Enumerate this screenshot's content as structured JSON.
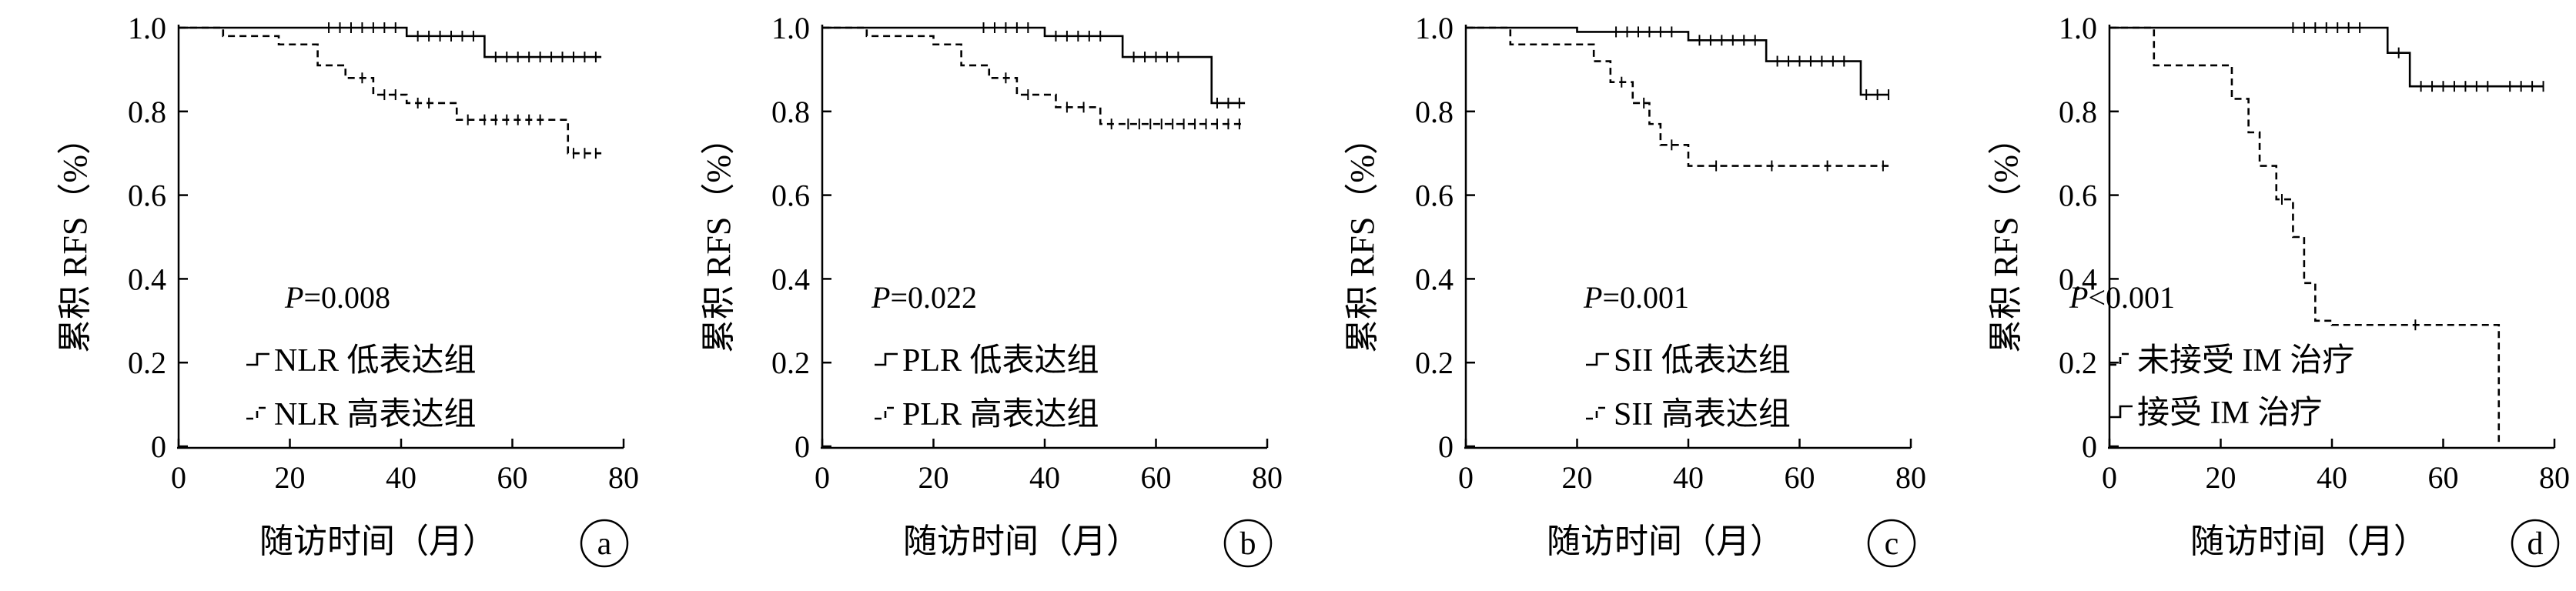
{
  "chart_data": [
    {
      "type": "line",
      "panel_label": "a",
      "xlabel": "随访时间（月）",
      "ylabel": "累积 RFS（%）",
      "xlim": [
        0,
        80
      ],
      "ylim": [
        0,
        1.0
      ],
      "xticks": [
        "0",
        "20",
        "40",
        "60",
        "80"
      ],
      "yticks": [
        "0",
        "0.2",
        "0.4",
        "0.6",
        "0.8",
        "1.0"
      ],
      "p_label": "P",
      "p_value": "=0.008",
      "series": [
        {
          "name": "NLR 低表达组",
          "style": "solid",
          "x": [
            0,
            41,
            55,
            76
          ],
          "y": [
            1.0,
            0.98,
            0.93,
            0.93
          ],
          "censored": [
            [
              27,
              1.0
            ],
            [
              29,
              1.0
            ],
            [
              31,
              1.0
            ],
            [
              33,
              1.0
            ],
            [
              35,
              1.0
            ],
            [
              37,
              1.0
            ],
            [
              39,
              1.0
            ],
            [
              43,
              0.98
            ],
            [
              45,
              0.98
            ],
            [
              47,
              0.98
            ],
            [
              49,
              0.98
            ],
            [
              51,
              0.98
            ],
            [
              53,
              0.98
            ],
            [
              57,
              0.93
            ],
            [
              59,
              0.93
            ],
            [
              61,
              0.93
            ],
            [
              63,
              0.93
            ],
            [
              65,
              0.93
            ],
            [
              67,
              0.93
            ],
            [
              69,
              0.93
            ],
            [
              71,
              0.93
            ],
            [
              73,
              0.93
            ],
            [
              75,
              0.93
            ]
          ]
        },
        {
          "name": "NLR 高表达组",
          "style": "dashed",
          "x": [
            0,
            8,
            18,
            25,
            30,
            35,
            41,
            50,
            70,
            76
          ],
          "y": [
            1.0,
            0.98,
            0.96,
            0.91,
            0.88,
            0.84,
            0.82,
            0.78,
            0.7,
            0.7
          ],
          "censored": [
            [
              33,
              0.88
            ],
            [
              37,
              0.84
            ],
            [
              39,
              0.84
            ],
            [
              43,
              0.82
            ],
            [
              45,
              0.82
            ],
            [
              52,
              0.78
            ],
            [
              55,
              0.78
            ],
            [
              57,
              0.78
            ],
            [
              59,
              0.78
            ],
            [
              61,
              0.78
            ],
            [
              63,
              0.78
            ],
            [
              65,
              0.78
            ],
            [
              71,
              0.7
            ],
            [
              73,
              0.7
            ],
            [
              75,
              0.7
            ]
          ]
        }
      ]
    },
    {
      "type": "line",
      "panel_label": "b",
      "xlabel": "随访时间（月）",
      "ylabel": "累积 RFS（%）",
      "xlim": [
        0,
        80
      ],
      "ylim": [
        0,
        1.0
      ],
      "xticks": [
        "0",
        "20",
        "40",
        "60",
        "80"
      ],
      "yticks": [
        "0",
        "0.2",
        "0.4",
        "0.6",
        "0.8",
        "1.0"
      ],
      "p_label": "P",
      "p_value": "=0.022",
      "series": [
        {
          "name": "PLR 低表达组",
          "style": "solid",
          "x": [
            0,
            40,
            54,
            70,
            76
          ],
          "y": [
            1.0,
            0.98,
            0.93,
            0.82,
            0.82
          ],
          "censored": [
            [
              29,
              1.0
            ],
            [
              31,
              1.0
            ],
            [
              33,
              1.0
            ],
            [
              35,
              1.0
            ],
            [
              37,
              1.0
            ],
            [
              42,
              0.98
            ],
            [
              44,
              0.98
            ],
            [
              46,
              0.98
            ],
            [
              48,
              0.98
            ],
            [
              50,
              0.98
            ],
            [
              56,
              0.93
            ],
            [
              58,
              0.93
            ],
            [
              60,
              0.93
            ],
            [
              62,
              0.93
            ],
            [
              64,
              0.93
            ],
            [
              71,
              0.82
            ],
            [
              73,
              0.82
            ],
            [
              75,
              0.82
            ]
          ]
        },
        {
          "name": "PLR 高表达组",
          "style": "dashed",
          "x": [
            0,
            8,
            20,
            25,
            30,
            35,
            42,
            50,
            76
          ],
          "y": [
            1.0,
            0.98,
            0.96,
            0.91,
            0.88,
            0.84,
            0.81,
            0.77,
            0.77
          ],
          "censored": [
            [
              33,
              0.88
            ],
            [
              37,
              0.84
            ],
            [
              44,
              0.81
            ],
            [
              47,
              0.81
            ],
            [
              52,
              0.77
            ],
            [
              55,
              0.77
            ],
            [
              57,
              0.77
            ],
            [
              59,
              0.77
            ],
            [
              61,
              0.77
            ],
            [
              63,
              0.77
            ],
            [
              65,
              0.77
            ],
            [
              67,
              0.77
            ],
            [
              69,
              0.77
            ],
            [
              71,
              0.77
            ],
            [
              73,
              0.77
            ],
            [
              75,
              0.77
            ]
          ]
        }
      ]
    },
    {
      "type": "line",
      "panel_label": "c",
      "xlabel": "随访时间（月）",
      "ylabel": "累积 RFS（%）",
      "xlim": [
        0,
        80
      ],
      "ylim": [
        0,
        1.0
      ],
      "xticks": [
        "0",
        "20",
        "40",
        "60",
        "80"
      ],
      "yticks": [
        "0",
        "0.2",
        "0.4",
        "0.6",
        "0.8",
        "1.0"
      ],
      "p_label": "P",
      "p_value": "=0.001",
      "series": [
        {
          "name": "SII 低表达组",
          "style": "solid",
          "x": [
            0,
            20,
            40,
            54,
            71,
            76
          ],
          "y": [
            1.0,
            0.99,
            0.97,
            0.92,
            0.84,
            0.84
          ],
          "censored": [
            [
              27,
              0.99
            ],
            [
              29,
              0.99
            ],
            [
              31,
              0.99
            ],
            [
              33,
              0.99
            ],
            [
              35,
              0.99
            ],
            [
              37,
              0.99
            ],
            [
              42,
              0.97
            ],
            [
              44,
              0.97
            ],
            [
              46,
              0.97
            ],
            [
              48,
              0.97
            ],
            [
              50,
              0.97
            ],
            [
              52,
              0.97
            ],
            [
              56,
              0.92
            ],
            [
              58,
              0.92
            ],
            [
              60,
              0.92
            ],
            [
              62,
              0.92
            ],
            [
              64,
              0.92
            ],
            [
              66,
              0.92
            ],
            [
              68,
              0.92
            ],
            [
              72,
              0.84
            ],
            [
              74,
              0.84
            ],
            [
              76,
              0.84
            ]
          ]
        },
        {
          "name": "SII 高表达组",
          "style": "dashed",
          "x": [
            0,
            8,
            23,
            26,
            30,
            33,
            35,
            40,
            76
          ],
          "y": [
            1.0,
            0.96,
            0.92,
            0.87,
            0.82,
            0.77,
            0.72,
            0.67,
            0.67
          ],
          "censored": [
            [
              28,
              0.87
            ],
            [
              32,
              0.82
            ],
            [
              37,
              0.72
            ],
            [
              45,
              0.67
            ],
            [
              55,
              0.67
            ],
            [
              65,
              0.67
            ],
            [
              75,
              0.67
            ]
          ]
        }
      ]
    },
    {
      "type": "line",
      "panel_label": "d",
      "xlabel": "随访时间（月）",
      "ylabel": "累积 RFS（%）",
      "xlim": [
        0,
        80
      ],
      "ylim": [
        0,
        1.0
      ],
      "xticks": [
        "0",
        "20",
        "40",
        "60",
        "80"
      ],
      "yticks": [
        "0",
        "0.2",
        "0.4",
        "0.6",
        "0.8",
        "1.0"
      ],
      "p_label": "P",
      "p_value": "<0.001",
      "series": [
        {
          "name": "未接受 IM 治疗",
          "style": "dashed",
          "x": [
            0,
            8,
            22,
            25,
            27,
            30,
            33,
            35,
            37,
            40,
            70,
            70
          ],
          "y": [
            1.0,
            0.91,
            0.83,
            0.75,
            0.67,
            0.59,
            0.5,
            0.39,
            0.3,
            0.29,
            0.29,
            0.0
          ],
          "censored": [
            [
              31,
              0.59
            ],
            [
              55,
              0.29
            ]
          ]
        },
        {
          "name": "接受 IM 治疗",
          "style": "solid",
          "x": [
            0,
            50,
            54,
            78
          ],
          "y": [
            1.0,
            0.94,
            0.86,
            0.86
          ],
          "censored": [
            [
              33,
              1.0
            ],
            [
              35,
              1.0
            ],
            [
              37,
              1.0
            ],
            [
              39,
              1.0
            ],
            [
              41,
              1.0
            ],
            [
              43,
              1.0
            ],
            [
              45,
              1.0
            ],
            [
              52,
              0.94
            ],
            [
              56,
              0.86
            ],
            [
              58,
              0.86
            ],
            [
              60,
              0.86
            ],
            [
              62,
              0.86
            ],
            [
              64,
              0.86
            ],
            [
              66,
              0.86
            ],
            [
              68,
              0.86
            ],
            [
              72,
              0.86
            ],
            [
              74,
              0.86
            ],
            [
              76,
              0.86
            ],
            [
              78,
              0.86
            ]
          ]
        }
      ]
    }
  ]
}
